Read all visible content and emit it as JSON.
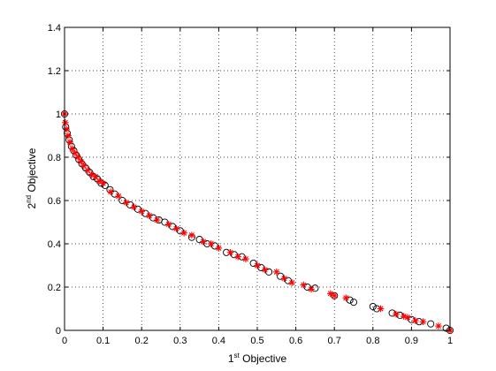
{
  "chart_data": {
    "type": "scatter",
    "xlabel": {
      "base": "1",
      "sup": "st",
      "rest": " Objective"
    },
    "ylabel": {
      "base": "2",
      "sup": "nd",
      "rest": " Objective"
    },
    "xlim": [
      0,
      1
    ],
    "ylim": [
      0,
      1.4
    ],
    "xticks": [
      0,
      0.1,
      0.2,
      0.3,
      0.4,
      0.5,
      0.6,
      0.7,
      0.8,
      0.9,
      1
    ],
    "yticks": [
      0,
      0.2,
      0.4,
      0.6,
      0.8,
      1,
      1.2,
      1.4
    ],
    "xtick_labels": [
      "0",
      "0.1",
      "0.2",
      "0.3",
      "0.4",
      "0.5",
      "0.6",
      "0.7",
      "0.8",
      "0.9",
      "1"
    ],
    "ytick_labels": [
      "0",
      "0.2",
      "0.4",
      "0.6",
      "0.8",
      "1",
      "1.2",
      "1.4"
    ],
    "grid": true,
    "grid_style": "dotted",
    "colors": {
      "circle": "#000000",
      "star": "#ff0000"
    },
    "series": [
      {
        "marker": "circle",
        "x": [
          0,
          0.003,
          0.007,
          0.012,
          0.018,
          0.024,
          0.03,
          0.037,
          0.045,
          0.055,
          0.065,
          0.075,
          0.085,
          0.095,
          0.105,
          0.118,
          0.13,
          0.15,
          0.17,
          0.19,
          0.21,
          0.23,
          0.245,
          0.26,
          0.28,
          0.3,
          0.33,
          0.35,
          0.37,
          0.39,
          0.42,
          0.44,
          0.46,
          0.49,
          0.51,
          0.53,
          0.56,
          0.58,
          0.63,
          0.65,
          0.7,
          0.74,
          0.75,
          0.8,
          0.81,
          0.85,
          0.87,
          0.9,
          0.92,
          0.95,
          0.99,
          1
        ],
        "y": [
          1,
          0.94,
          0.91,
          0.88,
          0.85,
          0.83,
          0.81,
          0.79,
          0.77,
          0.75,
          0.73,
          0.71,
          0.7,
          0.68,
          0.67,
          0.65,
          0.63,
          0.6,
          0.58,
          0.56,
          0.54,
          0.52,
          0.51,
          0.5,
          0.48,
          0.46,
          0.43,
          0.42,
          0.4,
          0.39,
          0.36,
          0.35,
          0.34,
          0.31,
          0.29,
          0.27,
          0.25,
          0.23,
          0.2,
          0.195,
          0.16,
          0.14,
          0.13,
          0.11,
          0.1,
          0.08,
          0.07,
          0.05,
          0.04,
          0.03,
          0.01,
          0
        ]
      },
      {
        "marker": "star",
        "x": [
          0,
          0.002,
          0.005,
          0.009,
          0.014,
          0.02,
          0.027,
          0.035,
          0.043,
          0.05,
          0.06,
          0.07,
          0.08,
          0.09,
          0.1,
          0.12,
          0.14,
          0.16,
          0.18,
          0.2,
          0.22,
          0.24,
          0.27,
          0.29,
          0.31,
          0.33,
          0.36,
          0.38,
          0.4,
          0.43,
          0.45,
          0.47,
          0.5,
          0.52,
          0.55,
          0.57,
          0.59,
          0.62,
          0.64,
          0.69,
          0.7,
          0.73,
          0.82,
          0.86,
          0.88,
          0.89,
          0.91,
          0.93,
          0.97,
          1
        ],
        "y": [
          1,
          0.96,
          0.93,
          0.9,
          0.87,
          0.84,
          0.82,
          0.8,
          0.78,
          0.76,
          0.74,
          0.72,
          0.71,
          0.69,
          0.68,
          0.64,
          0.62,
          0.59,
          0.57,
          0.55,
          0.53,
          0.51,
          0.49,
          0.47,
          0.45,
          0.44,
          0.41,
          0.4,
          0.38,
          0.36,
          0.34,
          0.33,
          0.3,
          0.28,
          0.27,
          0.24,
          0.22,
          0.21,
          0.19,
          0.17,
          0.16,
          0.15,
          0.1,
          0.075,
          0.065,
          0.06,
          0.045,
          0.04,
          0.02,
          0
        ]
      }
    ]
  }
}
